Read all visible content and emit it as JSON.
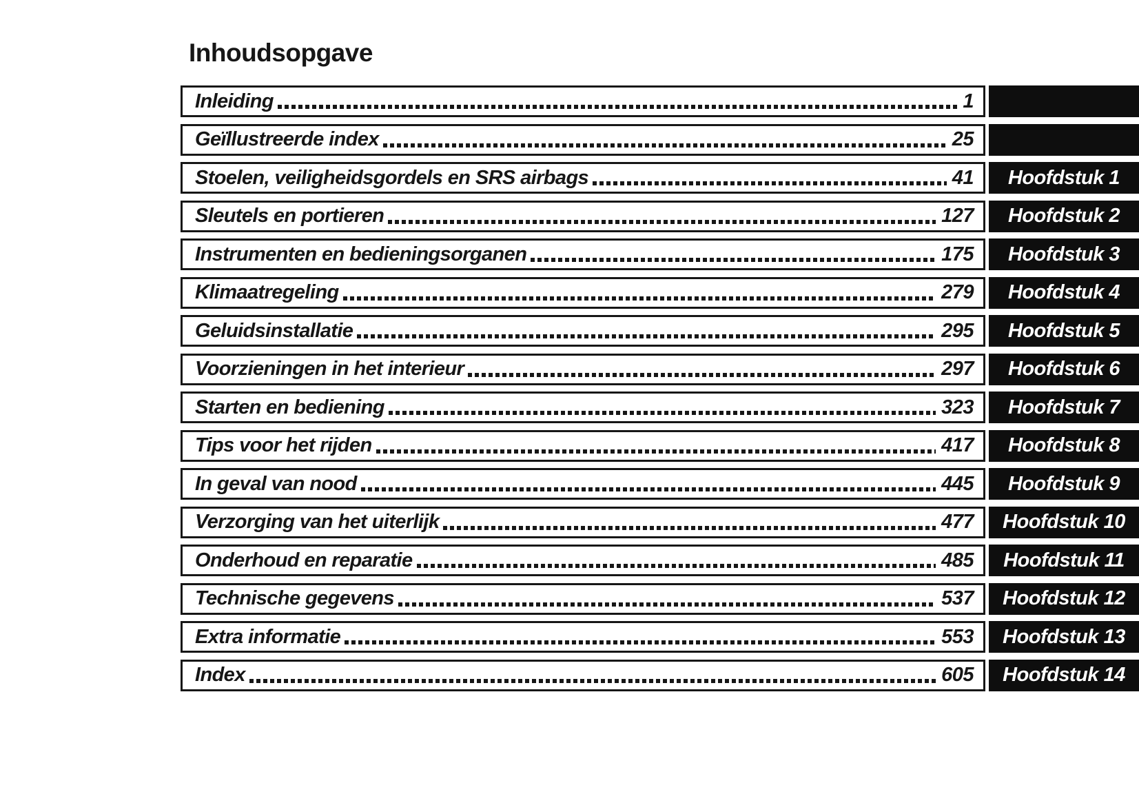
{
  "page": {
    "title": "Inhoudsopgave"
  },
  "colors": {
    "ink": "#161616",
    "tab_bg": "#0e0e0e",
    "tab_text": "#ffffff",
    "paper": "#ffffff"
  },
  "toc": {
    "rows": [
      {
        "label": "Inleiding",
        "page": "1",
        "tab": ""
      },
      {
        "label": "Geïllustreerde index",
        "page": "25",
        "tab": ""
      },
      {
        "label": "Stoelen, veiligheidsgordels en SRS airbags",
        "page": "41",
        "tab": "Hoofdstuk 1"
      },
      {
        "label": "Sleutels en portieren",
        "page": "127",
        "tab": "Hoofdstuk 2"
      },
      {
        "label": "Instrumenten en bedieningsorganen",
        "page": "175",
        "tab": "Hoofdstuk 3"
      },
      {
        "label": "Klimaatregeling",
        "page": "279",
        "tab": "Hoofdstuk 4"
      },
      {
        "label": "Geluidsinstallatie",
        "page": "295",
        "tab": "Hoofdstuk 5"
      },
      {
        "label": "Voorzieningen in het interieur",
        "page": "297",
        "tab": "Hoofdstuk 6"
      },
      {
        "label": "Starten en bediening",
        "page": "323",
        "tab": "Hoofdstuk 7"
      },
      {
        "label": "Tips voor het rijden",
        "page": "417",
        "tab": "Hoofdstuk 8"
      },
      {
        "label": "In geval van nood",
        "page": "445",
        "tab": "Hoofdstuk 9"
      },
      {
        "label": "Verzorging van het uiterlijk",
        "page": "477",
        "tab": "Hoofdstuk 10"
      },
      {
        "label": "Onderhoud en reparatie",
        "page": "485",
        "tab": "Hoofdstuk 11"
      },
      {
        "label": "Technische gegevens",
        "page": "537",
        "tab": "Hoofdstuk 12"
      },
      {
        "label": "Extra informatie",
        "page": "553",
        "tab": "Hoofdstuk 13"
      },
      {
        "label": "Index",
        "page": "605",
        "tab": "Hoofdstuk 14"
      }
    ]
  }
}
